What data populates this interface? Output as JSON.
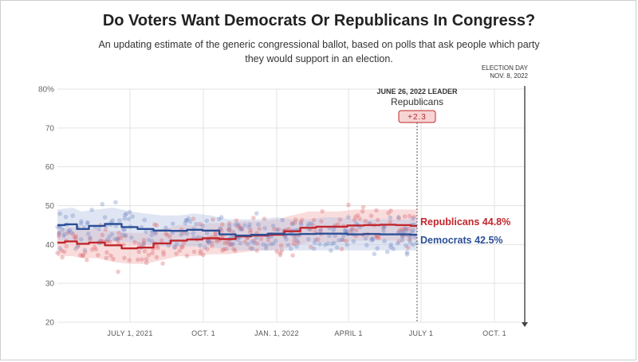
{
  "chart_data": {
    "type": "line",
    "title": "Do Voters Want Democrats Or Republicans In Congress?",
    "subtitle_lines": [
      "An updating estimate of the generic congressional ballot, based on polls that ask people which party",
      "they would support in an election."
    ],
    "ylim": [
      20,
      80
    ],
    "y_ticks": [
      {
        "value": 80,
        "label": "80%"
      },
      {
        "value": 70,
        "label": "70"
      },
      {
        "value": 60,
        "label": "60"
      },
      {
        "value": 50,
        "label": "50"
      },
      {
        "value": 40,
        "label": "40"
      },
      {
        "value": 30,
        "label": "30"
      },
      {
        "value": 20,
        "label": "20"
      }
    ],
    "xlim": [
      "2021-04-01",
      "2022-11-08"
    ],
    "x_ticks": [
      {
        "date": "2021-07-01",
        "label": "JULY 1, 2021"
      },
      {
        "date": "2021-10-01",
        "label": "OCT. 1"
      },
      {
        "date": "2022-01-01",
        "label": "JAN. 1, 2022"
      },
      {
        "date": "2022-04-01",
        "label": "APRIL 1"
      },
      {
        "date": "2022-07-01",
        "label": "JULY 1"
      },
      {
        "date": "2022-10-01",
        "label": "OCT. 1"
      }
    ],
    "election_day": {
      "date": "2022-11-08",
      "label_line1": "ELECTION DAY",
      "label_line2": "NOV. 8, 2022"
    },
    "leader": {
      "date": "2022-06-26",
      "label": "JUNE 26, 2022 LEADER",
      "party": "Republicans",
      "margin": "+2.3"
    },
    "series": [
      {
        "name": "Republicans",
        "end_label": "Republicans 44.8%",
        "color": "#c0272d",
        "band_color": "#f2b1b1",
        "dot_color": "#d9646a",
        "x": [
          "2021-04-01",
          "2021-04-20",
          "2021-05-01",
          "2021-05-20",
          "2021-06-10",
          "2021-07-01",
          "2021-07-20",
          "2021-08-10",
          "2021-09-01",
          "2021-09-20",
          "2021-10-10",
          "2021-11-01",
          "2021-11-20",
          "2021-12-10",
          "2022-01-01",
          "2022-01-20",
          "2022-02-10",
          "2022-03-01",
          "2022-03-20",
          "2022-04-10",
          "2022-05-01",
          "2022-05-20",
          "2022-06-10",
          "2022-06-26"
        ],
        "values": [
          40.5,
          40.8,
          40.2,
          40.5,
          39.8,
          39.0,
          39.2,
          40.3,
          41.0,
          41.3,
          41.6,
          41.4,
          42.1,
          42.3,
          42.5,
          43.4,
          44.3,
          44.6,
          44.6,
          44.9,
          45.0,
          45.1,
          45.0,
          44.8
        ],
        "band_lower": [
          37,
          37,
          36.5,
          36.5,
          35.5,
          35,
          35,
          36,
          37,
          37,
          37.5,
          37.5,
          38,
          38.5,
          38.5,
          39.5,
          40.5,
          40.5,
          40.5,
          41,
          41,
          41,
          41,
          41
        ],
        "band_upper": [
          44,
          44.5,
          44,
          44,
          43.5,
          43,
          43,
          44,
          45,
          45,
          45.5,
          45.5,
          46,
          46,
          46.5,
          47.5,
          48.5,
          48.5,
          48.5,
          49,
          49,
          49,
          49,
          49
        ]
      },
      {
        "name": "Democrats",
        "end_label": "Democrats 42.5%",
        "color": "#2c4f96",
        "band_color": "#b8c5e3",
        "dot_color": "#6f88c6",
        "x": [
          "2021-04-01",
          "2021-04-20",
          "2021-05-01",
          "2021-05-20",
          "2021-06-10",
          "2021-07-01",
          "2021-07-20",
          "2021-08-10",
          "2021-09-01",
          "2021-09-20",
          "2021-10-10",
          "2021-11-01",
          "2021-11-20",
          "2021-12-10",
          "2022-01-01",
          "2022-01-20",
          "2022-02-10",
          "2022-03-01",
          "2022-03-20",
          "2022-04-10",
          "2022-05-01",
          "2022-05-20",
          "2022-06-10",
          "2022-06-26"
        ],
        "values": [
          45.0,
          45.2,
          44.0,
          44.8,
          45.3,
          44.5,
          44.0,
          43.6,
          43.5,
          43.8,
          43.6,
          42.6,
          42.3,
          42.5,
          42.8,
          42.6,
          42.7,
          42.8,
          42.8,
          42.6,
          42.7,
          42.6,
          42.6,
          42.5
        ],
        "band_lower": [
          41,
          41,
          40,
          40.5,
          41,
          40.5,
          40,
          39.5,
          39.5,
          39.5,
          39.5,
          38.5,
          38.5,
          38.5,
          38.5,
          38.5,
          38.5,
          38.5,
          38.5,
          38.5,
          38.5,
          38.5,
          38.5,
          38.5
        ],
        "band_upper": [
          49,
          49.5,
          48.5,
          49,
          49.5,
          48.5,
          48,
          47.5,
          47.5,
          48,
          47.5,
          46.5,
          46.5,
          46.5,
          47,
          46.5,
          46.5,
          47,
          47,
          46.5,
          46.5,
          46.5,
          46.5,
          46.5
        ]
      }
    ]
  }
}
